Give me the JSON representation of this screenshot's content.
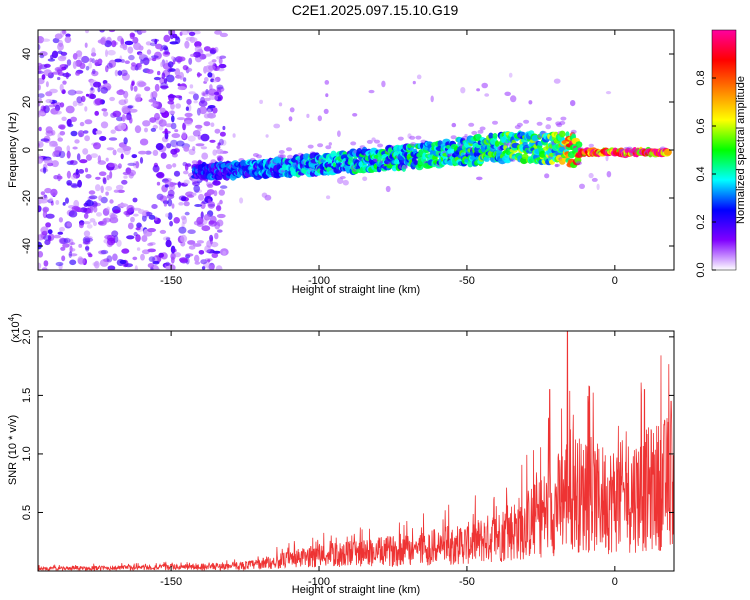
{
  "title": "C2E1.2025.097.15.10.G19",
  "colorbar": {
    "label": "Normalized spectral amplitude",
    "range": [
      0,
      1
    ],
    "ticks": [
      0.0,
      0.2,
      0.4,
      0.6,
      0.8
    ],
    "tick_labels": [
      "0.0",
      "0.2",
      "0.4",
      "0.6",
      "0.8"
    ],
    "colors": [
      "#ffffff",
      "#8000ff",
      "#0000ff",
      "#00ffff",
      "#00ff00",
      "#ffff00",
      "#ff8000",
      "#ff0000",
      "#ff00a0"
    ]
  },
  "chart_data": [
    {
      "type": "heatmap",
      "title": "",
      "xlabel": "Height of straight line (km)",
      "ylabel": "Frequency (Hz)",
      "xlim": [
        -195,
        20
      ],
      "ylim": [
        -50,
        50
      ],
      "xticks": [
        -150,
        -100,
        -50,
        0
      ],
      "xtick_labels": [
        "-150",
        "-100",
        "-50",
        "0"
      ],
      "yticks": [
        -40,
        -20,
        0,
        20,
        40
      ],
      "ytick_labels": [
        "-40",
        "-20",
        "0",
        "20",
        "40"
      ],
      "signal_track": {
        "description_points_x": [
          -142,
          -120,
          -100,
          -80,
          -60,
          -40,
          -20,
          -10,
          0,
          18
        ],
        "center_freq_y": [
          -9,
          -8,
          -6,
          -4,
          -2,
          1,
          1,
          -1,
          -1,
          -1
        ],
        "track_amplitude": [
          0.25,
          0.3,
          0.35,
          0.4,
          0.4,
          0.45,
          0.5,
          0.9,
          0.95,
          0.9
        ]
      },
      "noise_region": {
        "x_start": -195,
        "x_end": -132,
        "amplitude": 0.15
      },
      "grid": false
    },
    {
      "type": "line",
      "title": "",
      "xlabel": "Height of straight line (km)",
      "ylabel": "SNR (10 * v/v)",
      "yscale_label": "(x10",
      "yscale_exponent": "4",
      "xlim": [
        -195,
        20
      ],
      "ylim": [
        0,
        2.05
      ],
      "xticks": [
        -150,
        -100,
        -50,
        0
      ],
      "xtick_labels": [
        "-150",
        "-100",
        "-50",
        "0"
      ],
      "yticks": [
        0.5,
        1.0,
        1.5,
        2.0
      ],
      "ytick_labels": [
        "0.5",
        "1.0",
        "1.5",
        "2.0"
      ],
      "series": [
        {
          "color": "#ee3333",
          "envelope_x": [
            -195,
            -170,
            -150,
            -130,
            -120,
            -110,
            -100,
            -90,
            -80,
            -70,
            -60,
            -50,
            -40,
            -30,
            -20,
            -15,
            -10,
            0,
            10,
            20
          ],
          "envelope_y": [
            0.03,
            0.04,
            0.05,
            0.06,
            0.09,
            0.15,
            0.2,
            0.22,
            0.25,
            0.28,
            0.32,
            0.36,
            0.45,
            0.6,
            0.85,
            1.1,
            0.95,
            0.95,
            1.05,
            1.2
          ],
          "peaks_x": [
            -16,
            -22,
            10,
            19
          ],
          "peaks_y": [
            2.05,
            1.55,
            1.55,
            1.45
          ]
        }
      ],
      "grid": false
    }
  ]
}
